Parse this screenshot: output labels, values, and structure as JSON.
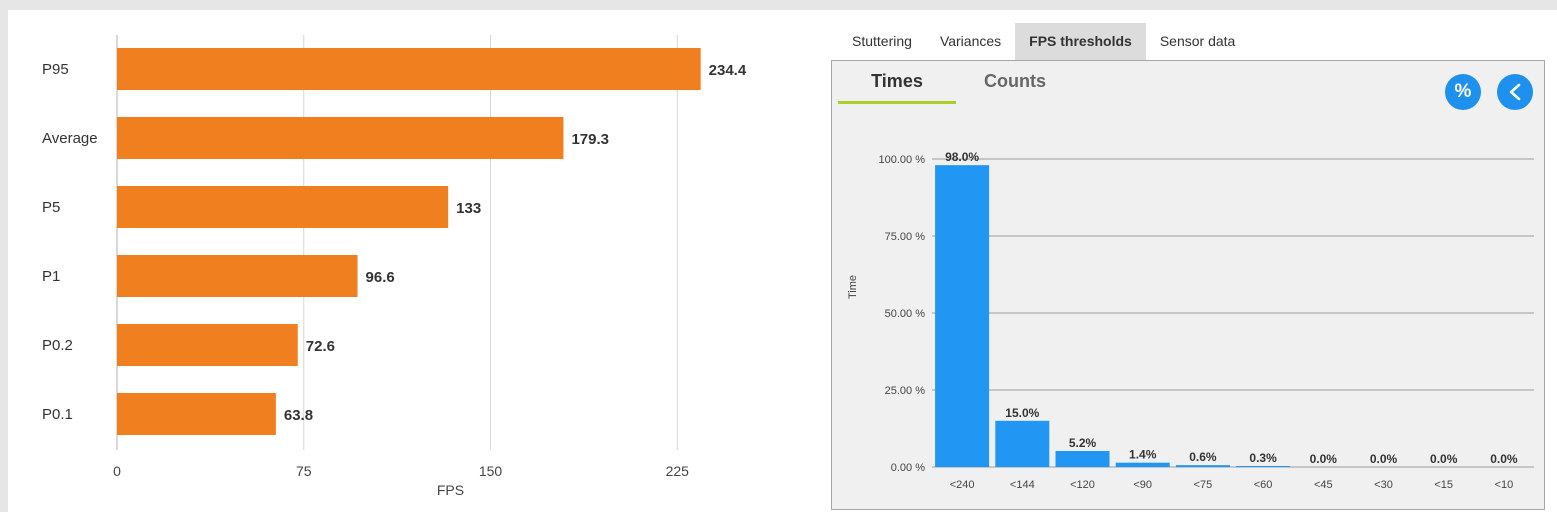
{
  "colors": {
    "bar_orange": "#f07f20",
    "bar_blue": "#2196f3",
    "accent_green": "#a7d129",
    "button_blue": "#1e90ee"
  },
  "tabs": [
    {
      "label": "Stuttering",
      "active": false
    },
    {
      "label": "Variances",
      "active": false
    },
    {
      "label": "FPS thresholds",
      "active": true
    },
    {
      "label": "Sensor data",
      "active": false
    }
  ],
  "subtabs": [
    {
      "label": "Times",
      "active": true
    },
    {
      "label": "Counts",
      "active": false
    }
  ],
  "buttons": {
    "percent_label": "%",
    "percent_icon": "percent-icon",
    "back_icon": "chevron-left-icon"
  },
  "chart_data": [
    {
      "type": "bar",
      "orientation": "horizontal",
      "categories": [
        "P95",
        "Average",
        "P5",
        "P1",
        "P0.2",
        "P0.1"
      ],
      "values": [
        234.4,
        179.3,
        133,
        96.6,
        72.6,
        63.8
      ],
      "value_labels": [
        "234.4",
        "179.3",
        "133",
        "96.6",
        "72.6",
        "63.8"
      ],
      "xlabel": "FPS",
      "ylabel": "",
      "xticks": [
        "0",
        "75",
        "150",
        "225"
      ],
      "xlim": [
        0,
        300
      ],
      "grid": true
    },
    {
      "type": "bar",
      "title": "",
      "categories": [
        "<240",
        "<144",
        "<120",
        "<90",
        "<75",
        "<60",
        "<45",
        "<30",
        "<15",
        "<10"
      ],
      "values": [
        98.0,
        15.0,
        5.2,
        1.4,
        0.6,
        0.3,
        0.0,
        0.0,
        0.0,
        0.0
      ],
      "value_labels": [
        "98.0%",
        "15.0%",
        "5.2%",
        "1.4%",
        "0.6%",
        "0.3%",
        "0.0%",
        "0.0%",
        "0.0%",
        "0.0%"
      ],
      "ylabel": "Time",
      "yticks": [
        "0.00 %",
        "25.00 %",
        "50.00 %",
        "75.00 %",
        "100.00 %"
      ],
      "ylim": [
        0,
        100
      ],
      "grid": true
    }
  ]
}
